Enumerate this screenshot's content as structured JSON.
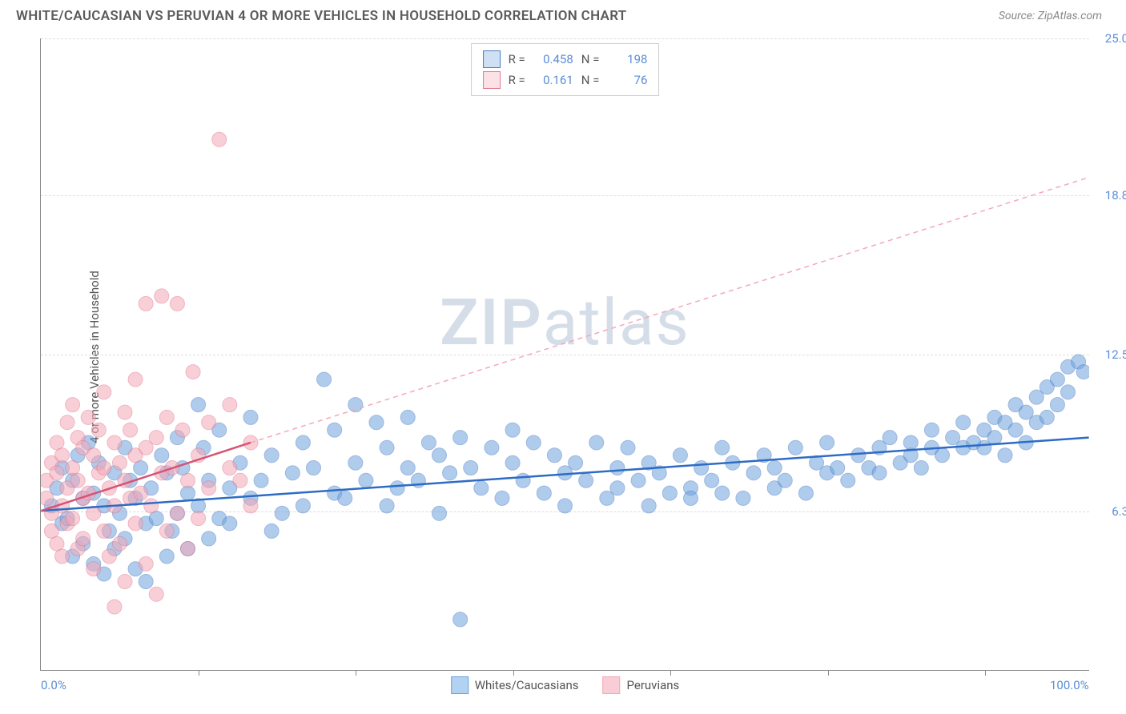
{
  "title": "WHITE/CAUCASIAN VS PERUVIAN 4 OR MORE VEHICLES IN HOUSEHOLD CORRELATION CHART",
  "source": "Source: ZipAtlas.com",
  "y_axis_label": "4 or more Vehicles in Household",
  "watermark_bold": "ZIP",
  "watermark_light": "atlas",
  "chart": {
    "type": "scatter",
    "xlim": [
      0,
      100
    ],
    "ylim": [
      0,
      25
    ],
    "x_ticks": [
      0,
      15,
      30,
      45,
      60,
      75,
      90,
      100
    ],
    "x_tick_labels": {
      "0": "0.0%",
      "100": "100.0%"
    },
    "y_ticks": [
      6.3,
      12.5,
      18.8,
      25.0
    ],
    "y_tick_labels": [
      "6.3%",
      "12.5%",
      "18.8%",
      "25.0%"
    ],
    "grid_color": "#dddddd",
    "background_color": "#ffffff",
    "marker_radius": 9,
    "marker_opacity": 0.55,
    "series": [
      {
        "name": "Whites/Caucasians",
        "color": "#6fa3e0",
        "stroke": "#4a7bc0",
        "R": "0.458",
        "N": "198",
        "trend": {
          "x1": 0,
          "y1": 6.3,
          "x2": 100,
          "y2": 9.2,
          "color": "#2e6cc4",
          "width": 2.5,
          "dash": "none"
        },
        "points": [
          [
            1,
            6.5
          ],
          [
            1.5,
            7.2
          ],
          [
            2,
            5.8
          ],
          [
            2,
            8.0
          ],
          [
            2.5,
            6.0
          ],
          [
            3,
            4.5
          ],
          [
            3,
            7.5
          ],
          [
            3.5,
            8.5
          ],
          [
            4,
            5.0
          ],
          [
            4,
            6.8
          ],
          [
            4.5,
            9.0
          ],
          [
            5,
            4.2
          ],
          [
            5,
            7.0
          ],
          [
            5.5,
            8.2
          ],
          [
            6,
            3.8
          ],
          [
            6,
            6.5
          ],
          [
            6.5,
            5.5
          ],
          [
            7,
            7.8
          ],
          [
            7,
            4.8
          ],
          [
            7.5,
            6.2
          ],
          [
            8,
            8.8
          ],
          [
            8,
            5.2
          ],
          [
            8.5,
            7.5
          ],
          [
            9,
            4.0
          ],
          [
            9,
            6.8
          ],
          [
            9.5,
            8.0
          ],
          [
            10,
            5.8
          ],
          [
            10,
            3.5
          ],
          [
            10.5,
            7.2
          ],
          [
            11,
            6.0
          ],
          [
            11.5,
            8.5
          ],
          [
            12,
            4.5
          ],
          [
            12,
            7.8
          ],
          [
            12.5,
            5.5
          ],
          [
            13,
            9.2
          ],
          [
            13,
            6.2
          ],
          [
            13.5,
            8.0
          ],
          [
            14,
            4.8
          ],
          [
            14,
            7.0
          ],
          [
            15,
            10.5
          ],
          [
            15,
            6.5
          ],
          [
            15.5,
            8.8
          ],
          [
            16,
            5.2
          ],
          [
            16,
            7.5
          ],
          [
            17,
            6.0
          ],
          [
            17,
            9.5
          ],
          [
            18,
            7.2
          ],
          [
            18,
            5.8
          ],
          [
            19,
            8.2
          ],
          [
            20,
            6.8
          ],
          [
            20,
            10.0
          ],
          [
            21,
            7.5
          ],
          [
            22,
            5.5
          ],
          [
            22,
            8.5
          ],
          [
            23,
            6.2
          ],
          [
            24,
            7.8
          ],
          [
            25,
            9.0
          ],
          [
            25,
            6.5
          ],
          [
            26,
            8.0
          ],
          [
            27,
            11.5
          ],
          [
            28,
            7.0
          ],
          [
            28,
            9.5
          ],
          [
            29,
            6.8
          ],
          [
            30,
            8.2
          ],
          [
            30,
            10.5
          ],
          [
            31,
            7.5
          ],
          [
            32,
            9.8
          ],
          [
            33,
            6.5
          ],
          [
            33,
            8.8
          ],
          [
            34,
            7.2
          ],
          [
            35,
            10.0
          ],
          [
            35,
            8.0
          ],
          [
            36,
            7.5
          ],
          [
            37,
            9.0
          ],
          [
            38,
            6.2
          ],
          [
            38,
            8.5
          ],
          [
            39,
            7.8
          ],
          [
            40,
            9.2
          ],
          [
            40,
            2.0
          ],
          [
            41,
            8.0
          ],
          [
            42,
            7.2
          ],
          [
            43,
            8.8
          ],
          [
            44,
            6.8
          ],
          [
            45,
            9.5
          ],
          [
            45,
            8.2
          ],
          [
            46,
            7.5
          ],
          [
            47,
            9.0
          ],
          [
            48,
            7.0
          ],
          [
            49,
            8.5
          ],
          [
            50,
            7.8
          ],
          [
            50,
            6.5
          ],
          [
            51,
            8.2
          ],
          [
            52,
            7.5
          ],
          [
            53,
            9.0
          ],
          [
            54,
            6.8
          ],
          [
            55,
            8.0
          ],
          [
            55,
            7.2
          ],
          [
            56,
            8.8
          ],
          [
            57,
            7.5
          ],
          [
            58,
            6.5
          ],
          [
            58,
            8.2
          ],
          [
            59,
            7.8
          ],
          [
            60,
            7.0
          ],
          [
            61,
            8.5
          ],
          [
            62,
            7.2
          ],
          [
            62,
            6.8
          ],
          [
            63,
            8.0
          ],
          [
            64,
            7.5
          ],
          [
            65,
            8.8
          ],
          [
            65,
            7.0
          ],
          [
            66,
            8.2
          ],
          [
            67,
            6.8
          ],
          [
            68,
            7.8
          ],
          [
            69,
            8.5
          ],
          [
            70,
            7.2
          ],
          [
            70,
            8.0
          ],
          [
            71,
            7.5
          ],
          [
            72,
            8.8
          ],
          [
            73,
            7.0
          ],
          [
            74,
            8.2
          ],
          [
            75,
            7.8
          ],
          [
            75,
            9.0
          ],
          [
            76,
            8.0
          ],
          [
            77,
            7.5
          ],
          [
            78,
            8.5
          ],
          [
            79,
            8.0
          ],
          [
            80,
            8.8
          ],
          [
            80,
            7.8
          ],
          [
            81,
            9.2
          ],
          [
            82,
            8.2
          ],
          [
            83,
            8.5
          ],
          [
            83,
            9.0
          ],
          [
            84,
            8.0
          ],
          [
            85,
            8.8
          ],
          [
            85,
            9.5
          ],
          [
            86,
            8.5
          ],
          [
            87,
            9.2
          ],
          [
            88,
            8.8
          ],
          [
            88,
            9.8
          ],
          [
            89,
            9.0
          ],
          [
            90,
            9.5
          ],
          [
            90,
            8.8
          ],
          [
            91,
            10.0
          ],
          [
            91,
            9.2
          ],
          [
            92,
            9.8
          ],
          [
            92,
            8.5
          ],
          [
            93,
            10.5
          ],
          [
            93,
            9.5
          ],
          [
            94,
            10.2
          ],
          [
            94,
            9.0
          ],
          [
            95,
            10.8
          ],
          [
            95,
            9.8
          ],
          [
            96,
            11.2
          ],
          [
            96,
            10.0
          ],
          [
            97,
            11.5
          ],
          [
            97,
            10.5
          ],
          [
            98,
            12.0
          ],
          [
            98,
            11.0
          ],
          [
            99,
            12.2
          ],
          [
            99.5,
            11.8
          ]
        ]
      },
      {
        "name": "Peruvians",
        "color": "#f5a8b8",
        "stroke": "#e07a90",
        "R": "0.161",
        "N": "76",
        "trend_solid": {
          "x1": 0,
          "y1": 6.3,
          "x2": 20,
          "y2": 9.0,
          "color": "#d65475",
          "width": 2.5
        },
        "trend_dash": {
          "x1": 20,
          "y1": 9.0,
          "x2": 100,
          "y2": 19.5,
          "color": "#f5a8b8",
          "width": 1.5
        },
        "points": [
          [
            0.5,
            6.8
          ],
          [
            0.5,
            7.5
          ],
          [
            1,
            5.5
          ],
          [
            1,
            8.2
          ],
          [
            1,
            6.2
          ],
          [
            1.5,
            7.8
          ],
          [
            1.5,
            5.0
          ],
          [
            1.5,
            9.0
          ],
          [
            2,
            6.5
          ],
          [
            2,
            8.5
          ],
          [
            2,
            4.5
          ],
          [
            2.5,
            7.2
          ],
          [
            2.5,
            9.8
          ],
          [
            2.5,
            5.8
          ],
          [
            3,
            8.0
          ],
          [
            3,
            6.0
          ],
          [
            3,
            10.5
          ],
          [
            3.5,
            7.5
          ],
          [
            3.5,
            4.8
          ],
          [
            3.5,
            9.2
          ],
          [
            4,
            6.8
          ],
          [
            4,
            8.8
          ],
          [
            4,
            5.2
          ],
          [
            4.5,
            7.0
          ],
          [
            4.5,
            10.0
          ],
          [
            5,
            6.2
          ],
          [
            5,
            8.5
          ],
          [
            5,
            4.0
          ],
          [
            5.5,
            7.8
          ],
          [
            5.5,
            9.5
          ],
          [
            6,
            5.5
          ],
          [
            6,
            8.0
          ],
          [
            6,
            11.0
          ],
          [
            6.5,
            7.2
          ],
          [
            6.5,
            4.5
          ],
          [
            7,
            9.0
          ],
          [
            7,
            6.5
          ],
          [
            7,
            2.5
          ],
          [
            7.5,
            8.2
          ],
          [
            7.5,
            5.0
          ],
          [
            8,
            7.5
          ],
          [
            8,
            10.2
          ],
          [
            8,
            3.5
          ],
          [
            8.5,
            6.8
          ],
          [
            8.5,
            9.5
          ],
          [
            9,
            8.5
          ],
          [
            9,
            5.8
          ],
          [
            9,
            11.5
          ],
          [
            9.5,
            7.0
          ],
          [
            10,
            8.8
          ],
          [
            10,
            4.2
          ],
          [
            10,
            14.5
          ],
          [
            10.5,
            6.5
          ],
          [
            11,
            9.2
          ],
          [
            11,
            3.0
          ],
          [
            11.5,
            7.8
          ],
          [
            11.5,
            14.8
          ],
          [
            12,
            5.5
          ],
          [
            12,
            10.0
          ],
          [
            12.5,
            8.0
          ],
          [
            13,
            6.2
          ],
          [
            13,
            14.5
          ],
          [
            13.5,
            9.5
          ],
          [
            14,
            7.5
          ],
          [
            14,
            4.8
          ],
          [
            14.5,
            11.8
          ],
          [
            15,
            8.5
          ],
          [
            15,
            6.0
          ],
          [
            16,
            9.8
          ],
          [
            16,
            7.2
          ],
          [
            17,
            21.0
          ],
          [
            18,
            10.5
          ],
          [
            18,
            8.0
          ],
          [
            19,
            7.5
          ],
          [
            20,
            9.0
          ],
          [
            20,
            6.5
          ]
        ]
      }
    ]
  },
  "bottom_legend": [
    {
      "label": "Whites/Caucasians",
      "fill": "#b3d1f0",
      "stroke": "#6fa3e0"
    },
    {
      "label": "Peruvians",
      "fill": "#f8cdd6",
      "stroke": "#f5a8b8"
    }
  ]
}
